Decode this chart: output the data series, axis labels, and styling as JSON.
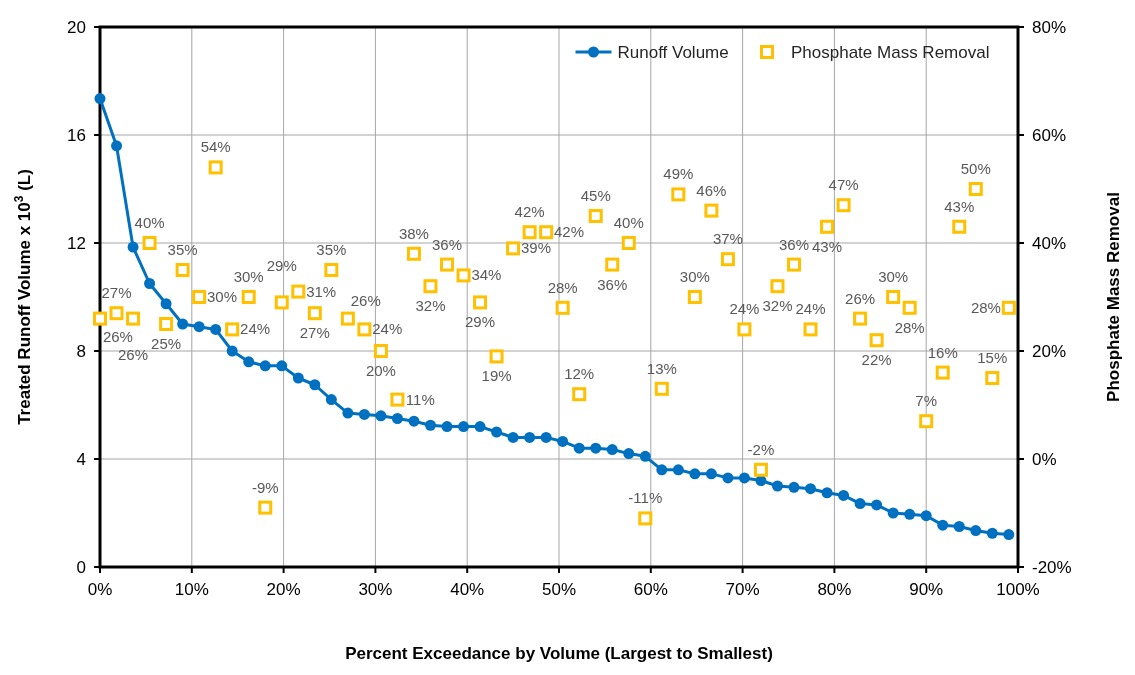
{
  "chart_data": {
    "type": "line",
    "xlabel": "Percent Exceedance by Volume (Largest to Smallest)",
    "ylabel": "Treated Runoff Volume x 10$^{3}$ (L)",
    "y2label": "Phosphate Mass Removal",
    "x": [
      0,
      1.8,
      3.6,
      5.4,
      7.2,
      9,
      10.8,
      12.6,
      14.4,
      16.2,
      18,
      19.8,
      21.6,
      23.4,
      25.2,
      27,
      28.8,
      30.6,
      32.4,
      34.2,
      36,
      37.8,
      39.6,
      41.4,
      43.2,
      45,
      46.8,
      48.6,
      50.4,
      52.2,
      54,
      55.8,
      57.6,
      59.4,
      61.2,
      63,
      64.8,
      66.6,
      68.4,
      70.2,
      72,
      73.8,
      75.6,
      77.4,
      79.2,
      81,
      82.8,
      84.6,
      86.4,
      88.2,
      90,
      91.8,
      93.6,
      95.4,
      97.2,
      99
    ],
    "series": [
      {
        "name": "Runoff Volume",
        "color": "#0070c0",
        "marker": "circle",
        "values": [
          17.35,
          15.6,
          11.85,
          10.5,
          9.75,
          9.0,
          8.9,
          8.8,
          8.0,
          7.6,
          7.45,
          7.45,
          7.0,
          6.75,
          6.2,
          5.7,
          5.65,
          5.6,
          5.5,
          5.4,
          5.25,
          5.2,
          5.2,
          5.2,
          5.0,
          4.8,
          4.8,
          4.8,
          4.65,
          4.4,
          4.4,
          4.35,
          4.2,
          4.1,
          3.6,
          3.6,
          3.45,
          3.45,
          3.3,
          3.3,
          3.2,
          3.0,
          2.95,
          2.9,
          2.75,
          2.65,
          2.35,
          2.3,
          2.0,
          1.95,
          1.9,
          1.55,
          1.5,
          1.35,
          1.25,
          1.2
        ]
      },
      {
        "name": "Phosphate Mass Removal",
        "type": "scatter",
        "axis": "y2",
        "color": "#ffc000",
        "marker": "square",
        "values": [
          26,
          27,
          26,
          40,
          25,
          35,
          30,
          54,
          24,
          30,
          -9,
          29,
          31,
          27,
          35,
          26,
          24,
          20,
          11,
          38,
          32,
          36,
          34,
          29,
          19,
          39,
          42,
          42,
          28,
          12,
          45,
          36,
          40,
          -11,
          13,
          49,
          30,
          46,
          37,
          24,
          -2,
          32,
          36,
          24,
          43,
          47,
          26,
          22,
          30,
          28,
          7,
          16,
          43,
          50,
          15,
          28
        ],
        "value_labels": [
          "26%",
          "27%",
          "26%",
          "40%",
          "25%",
          "35%",
          "30%",
          "54%",
          "24%",
          "30%",
          "-9%",
          "29%",
          "31%",
          "27%",
          "35%",
          "26%",
          "24%",
          "20%",
          "11%",
          "38%",
          "32%",
          "36%",
          "34%",
          "29%",
          "19%",
          "39%",
          "42%",
          "42%",
          "28%",
          "12%",
          "45%",
          "36%",
          "40%",
          "-11%",
          "13%",
          "49%",
          "30%",
          "46%",
          "37%",
          "24%",
          "-2%",
          "32%",
          "36%",
          "24%",
          "43%",
          "47%",
          "26%",
          "22%",
          "30%",
          "28%",
          "7%",
          "16%",
          "43%",
          "50%",
          "15%",
          "28%"
        ]
      }
    ],
    "xlim": [
      0,
      100
    ],
    "xticks": [
      {
        "value": 0,
        "label": "0%"
      },
      {
        "value": 10,
        "label": "10%"
      },
      {
        "value": 20,
        "label": "20%"
      },
      {
        "value": 30,
        "label": "30%"
      },
      {
        "value": 40,
        "label": "40%"
      },
      {
        "value": 50,
        "label": "50%"
      },
      {
        "value": 60,
        "label": "60%"
      },
      {
        "value": 70,
        "label": "70%"
      },
      {
        "value": 80,
        "label": "80%"
      },
      {
        "value": 90,
        "label": "90%"
      },
      {
        "value": 100,
        "label": "100%"
      }
    ],
    "ylim": [
      0,
      20
    ],
    "yticks": [
      0,
      4,
      8,
      12,
      16,
      20
    ],
    "y2lim": [
      -20,
      80
    ],
    "y2ticks": [
      {
        "value": -20,
        "label": "-20%"
      },
      {
        "value": 0,
        "label": "0%"
      },
      {
        "value": 20,
        "label": "20%"
      },
      {
        "value": 40,
        "label": "40%"
      },
      {
        "value": 60,
        "label": "60%"
      },
      {
        "value": 80,
        "label": "80%"
      }
    ],
    "grid": true,
    "legend": "top right"
  }
}
